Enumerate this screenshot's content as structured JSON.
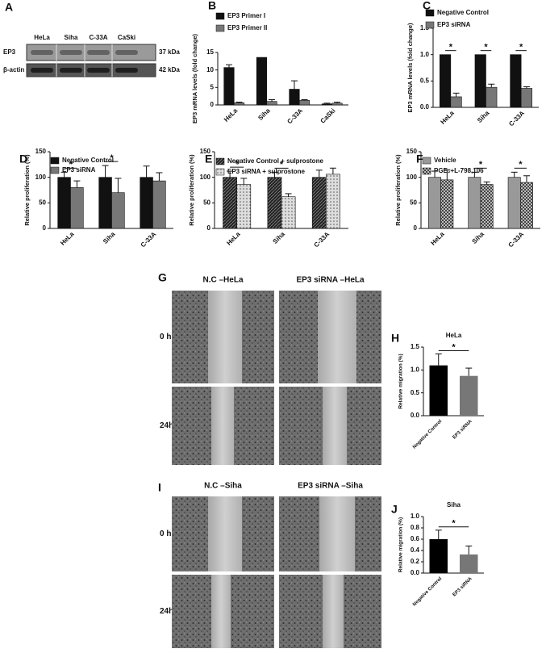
{
  "blot": {
    "label": "A",
    "lanes": [
      "HeLa",
      "Siha",
      "C-33A",
      "CaSki"
    ],
    "rows": [
      {
        "name": "EP3",
        "size": "37 kDa"
      },
      {
        "name": "β-actin",
        "size": "42 kDa"
      }
    ]
  },
  "chart_data": [
    {
      "type": "bar",
      "label": "B",
      "y_label": "EP3 mRNA levels (fold change)",
      "categories": [
        "HeLa",
        "Siha",
        "C-33A",
        "CaSki"
      ],
      "series": [
        {
          "name": "EP3 Primer I",
          "color": "#111111",
          "values": [
            10.7,
            13.6,
            4.5,
            0.3
          ],
          "errors": [
            0.8,
            0,
            2.4,
            0.2
          ]
        },
        {
          "name": "EP3 Primer II",
          "color": "#777777",
          "values": [
            0.6,
            1.0,
            1.3,
            0.5
          ],
          "errors": [
            0.2,
            0.5,
            0.2,
            0.3
          ]
        }
      ],
      "ylim": [
        0,
        15
      ],
      "yticks": [
        0,
        5,
        10,
        15
      ],
      "significance": [
        null,
        null,
        null,
        null
      ]
    },
    {
      "type": "bar",
      "label": "C",
      "y_label": "EP3 mRNA levels (fold change)",
      "categories": [
        "HeLa",
        "Siha",
        "C-33A"
      ],
      "series": [
        {
          "name": "Negative Control",
          "color": "#111111",
          "values": [
            1.0,
            1.0,
            1.0
          ],
          "errors": [
            0,
            0,
            0
          ]
        },
        {
          "name": "EP3 siRNA",
          "color": "#777777",
          "values": [
            0.2,
            0.38,
            0.36
          ],
          "errors": [
            0.07,
            0.06,
            0.03
          ]
        }
      ],
      "ylim": [
        0,
        1.5
      ],
      "yticks": [
        {
          "value": 0,
          "label": "0.0"
        },
        {
          "value": 0.5,
          "label": "0.5"
        },
        {
          "value": 1,
          "label": "1.0"
        },
        {
          "value": 1.5,
          "label": "1.5"
        }
      ],
      "significance": [
        "*",
        "*",
        "*"
      ]
    },
    {
      "type": "bar",
      "label": "D",
      "y_label": "Relative proliferation (%)",
      "categories": [
        "HeLa",
        "Siha",
        "C-33A"
      ],
      "series": [
        {
          "name": "Negative Control",
          "color": "#111111",
          "values": [
            100,
            100,
            100
          ],
          "errors": [
            10,
            23,
            22
          ]
        },
        {
          "name": "EP3 siRNA",
          "color": "#777777",
          "values": [
            80,
            70,
            93
          ],
          "errors": [
            13,
            28,
            16
          ]
        }
      ],
      "ylim": [
        0,
        150
      ],
      "yticks": [
        0,
        50,
        100,
        150
      ],
      "significance": [
        "*",
        "*",
        null
      ]
    },
    {
      "type": "bar",
      "label": "E",
      "y_label": "Relative proliferation (%)",
      "categories": [
        "HeLa",
        "Siha",
        "C-33A"
      ],
      "series": [
        {
          "name": "Negative Control + sulprostone",
          "color": "#222222",
          "pattern": "hatch",
          "values": [
            100,
            100,
            100
          ],
          "errors": [
            12,
            10,
            14
          ]
        },
        {
          "name": "EP3 siRNA + sulprostone",
          "color": "#dddddd",
          "pattern": "dots",
          "values": [
            86,
            62,
            106
          ],
          "errors": [
            12,
            6,
            12
          ]
        }
      ],
      "ylim": [
        0,
        150
      ],
      "yticks": [
        0,
        50,
        100,
        150
      ],
      "significance": [
        "*",
        "*",
        null
      ]
    },
    {
      "type": "bar",
      "label": "F",
      "y_label": "Relative proliferation (%)",
      "categories": [
        "HeLa",
        "Siha",
        "C-33A"
      ],
      "series": [
        {
          "name": "Vehicle",
          "color": "#999999",
          "values": [
            100,
            100,
            100
          ],
          "errors": [
            12,
            10,
            10
          ]
        },
        {
          "name": "PGE₂+L-798,106",
          "color": "#bbbbbb",
          "pattern": "checker",
          "values": [
            95,
            86,
            90
          ],
          "errors": [
            20,
            5,
            13
          ]
        }
      ],
      "ylim": [
        0,
        150
      ],
      "yticks": [
        0,
        50,
        100,
        150
      ],
      "significance": [
        null,
        "*",
        "*"
      ]
    },
    {
      "type": "bar",
      "label": "H",
      "title": "HeLa",
      "y_label": "Relative migration (%)",
      "categories": [
        "Negative Control",
        "EP3 siRNA"
      ],
      "values": [
        1.1,
        0.87
      ],
      "errors": [
        0.25,
        0.17
      ],
      "colors": [
        "#000000",
        "#777777"
      ],
      "ylim": [
        0,
        1.5
      ],
      "yticks": [
        {
          "value": 0,
          "label": "0.0"
        },
        {
          "value": 0.5,
          "label": "0.5"
        },
        {
          "value": 1,
          "label": "1.0"
        },
        {
          "value": 1.5,
          "label": "1.5"
        }
      ],
      "significance": "*"
    },
    {
      "type": "bar",
      "label": "J",
      "title": "Siha",
      "y_label": "Relative migration (%)",
      "categories": [
        "Negative Control",
        "EP3 siRNA"
      ],
      "values": [
        0.6,
        0.33
      ],
      "errors": [
        0.16,
        0.15
      ],
      "colors": [
        "#000000",
        "#777777"
      ],
      "ylim": [
        0,
        1
      ],
      "yticks": [
        {
          "value": 0,
          "label": "0.0"
        },
        {
          "value": 0.2,
          "label": "0.2"
        },
        {
          "value": 0.4,
          "label": "0.4"
        },
        {
          "value": 0.6,
          "label": "0.6"
        },
        {
          "value": 0.8,
          "label": "0.8"
        },
        {
          "value": 1,
          "label": "1.0"
        }
      ],
      "significance": "*"
    }
  ],
  "images": [
    {
      "label": "G",
      "columns": [
        "N.C –HeLa",
        "EP3 siRNA –HeLa"
      ],
      "rows": [
        "0 h",
        "24h"
      ]
    },
    {
      "label": "I",
      "columns": [
        "N.C –Siha",
        "EP3 siRNA –Siha"
      ],
      "rows": [
        "0 h",
        "24h"
      ]
    }
  ]
}
